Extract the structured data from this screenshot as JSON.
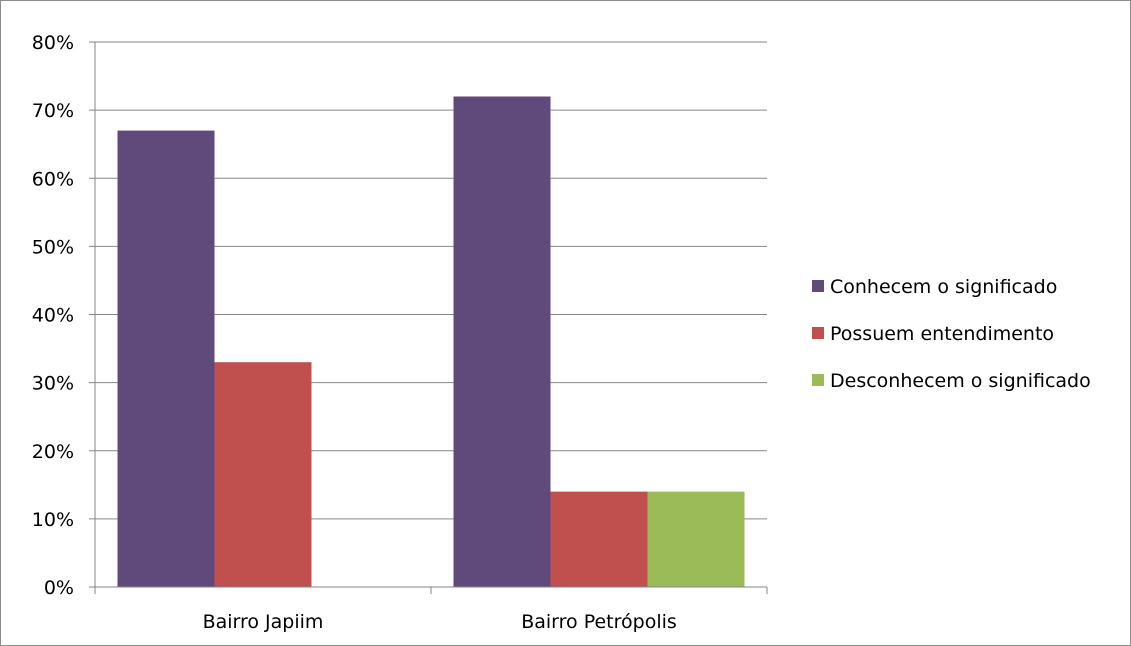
{
  "chart_data": {
    "type": "bar",
    "title": "",
    "xlabel": "",
    "ylabel": "",
    "categories": [
      "Bairro Japiim",
      "Bairro Petrópolis"
    ],
    "series": [
      {
        "name": "Conhecem o significado",
        "color": "#604A7B",
        "values": [
          67,
          72
        ]
      },
      {
        "name": "Possuem entendimento",
        "color": "#C0504D",
        "values": [
          33,
          14
        ]
      },
      {
        "name": "Desconhecem o significado",
        "color": "#9BBB59",
        "values": [
          0,
          14
        ]
      }
    ],
    "ylim": [
      0,
      80
    ],
    "yticks": [
      0,
      10,
      20,
      30,
      40,
      50,
      60,
      70,
      80
    ],
    "ytick_labels": [
      "0%",
      "10%",
      "20%",
      "30%",
      "40%",
      "50%",
      "60%",
      "70%",
      "80%"
    ],
    "grid": true,
    "legend_position": "right"
  }
}
